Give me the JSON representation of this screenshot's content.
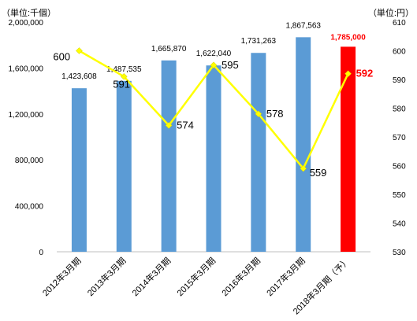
{
  "chart_data": {
    "type": "bar",
    "unit_left": "（単位:千個）",
    "unit_right": "（単位:円）",
    "categories": [
      "2012年3月期",
      "2013年3月期",
      "2014年3月期",
      "2015年3月期",
      "2016年3月期",
      "2017年3月期",
      "2018年3月期（予）"
    ],
    "bar_series": {
      "values": [
        1423608,
        1487535,
        1665870,
        1622040,
        1731263,
        1867563,
        1785000
      ],
      "value_labels": [
        "1,423,608",
        "1,487,535",
        "1,665,870",
        "1,622,040",
        "1,731,263",
        "1,867,563",
        "1,785,000"
      ],
      "color": "#5b9bd5",
      "highlight_color": "#ff0000",
      "highlight_index": 6
    },
    "line_series": {
      "values": [
        600,
        591,
        574,
        595,
        578,
        559,
        592
      ],
      "value_labels": [
        "600",
        "591",
        "574",
        "595",
        "578",
        "559",
        "592"
      ],
      "color": "#ffff00",
      "highlight_index": 6
    },
    "ylim_left": [
      0,
      2000000
    ],
    "yticks_left": [
      "0",
      "400,000",
      "800,000",
      "1,200,000",
      "1,600,000",
      "2,000,000"
    ],
    "ylim_right": [
      530,
      610
    ],
    "yticks_right": [
      "530",
      "540",
      "550",
      "560",
      "570",
      "580",
      "590",
      "600",
      "610"
    ],
    "grid": false
  }
}
